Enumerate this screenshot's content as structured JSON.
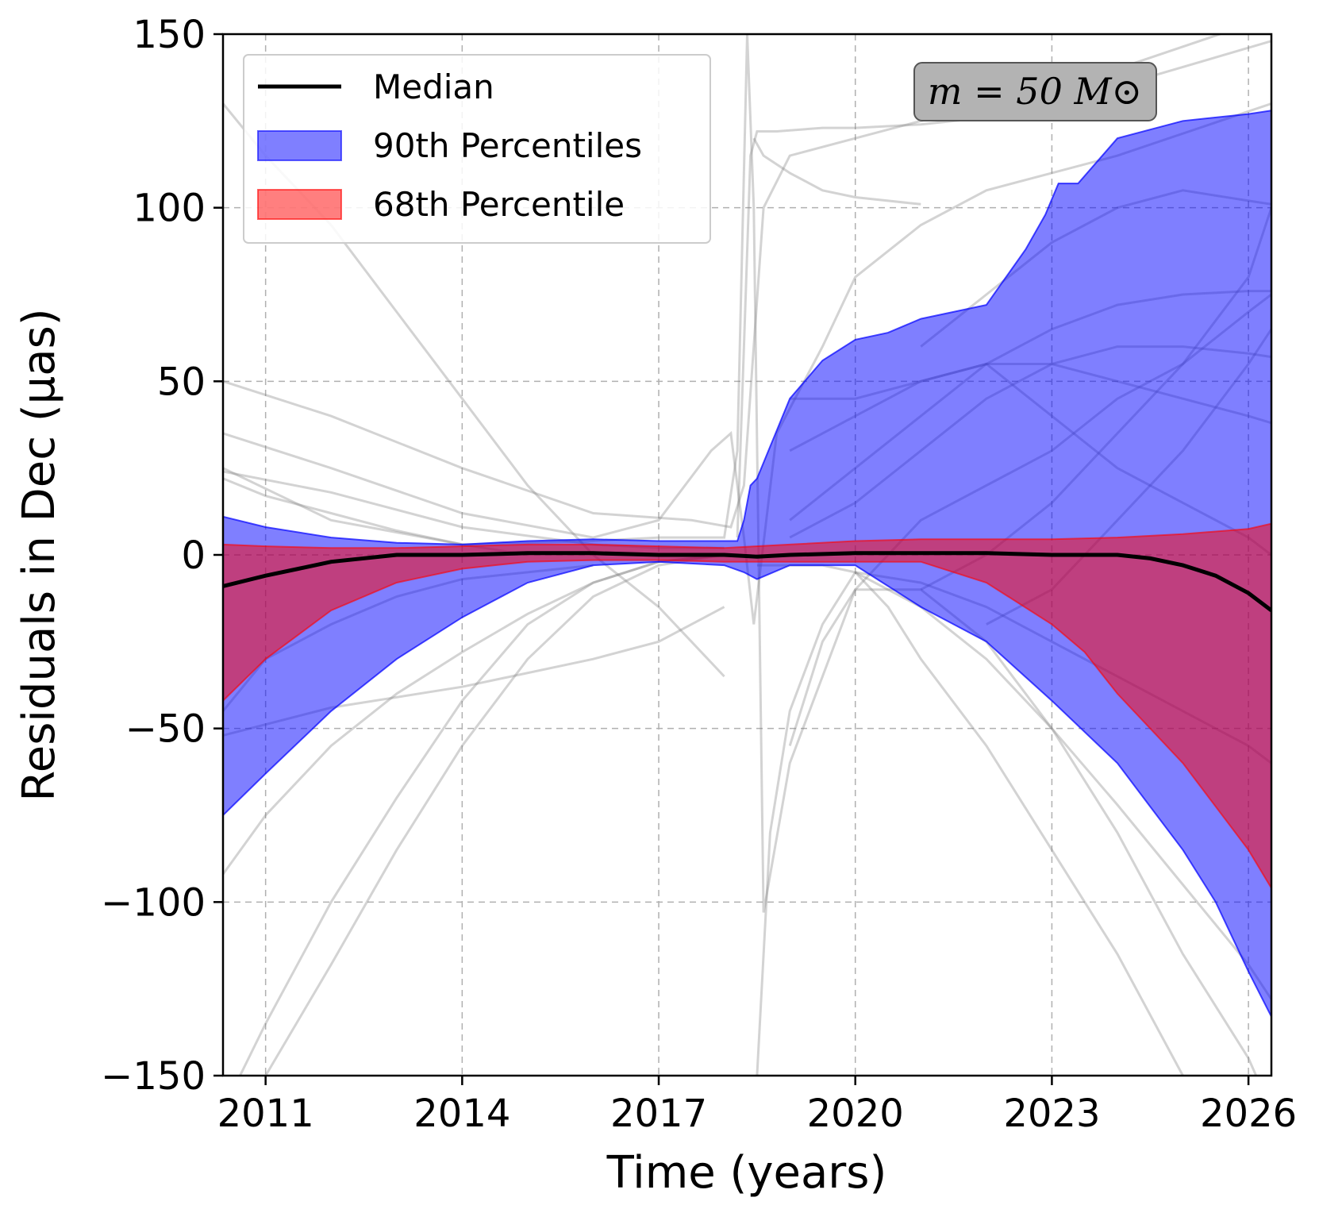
{
  "chart_data": {
    "type": "line",
    "title": "",
    "xlabel": "Time (years)",
    "ylabel": "Residuals in Dec (μas)",
    "xlim": [
      2010.35,
      2026.35
    ],
    "ylim": [
      -150,
      150
    ],
    "xticks": [
      2011,
      2014,
      2017,
      2020,
      2023,
      2026
    ],
    "xtick_labels": [
      "2011",
      "2014",
      "2017",
      "2020",
      "2023",
      "2026"
    ],
    "yticks": [
      -150,
      -100,
      -50,
      0,
      50,
      100,
      150
    ],
    "ytick_labels": [
      "−150",
      "−100",
      "−50",
      "0",
      "50",
      "100",
      "150"
    ],
    "grid": true,
    "legend": {
      "position": "top-left",
      "entries": [
        {
          "label": "Median",
          "kind": "line",
          "color": "#000000"
        },
        {
          "label": "90th Percentiles",
          "kind": "patch",
          "color": "#0000ff"
        },
        {
          "label": "68th Percentile",
          "kind": "patch",
          "color": "#ff0000"
        }
      ]
    },
    "annotation": {
      "text": "m = 50 M⊙",
      "position": "top-right"
    },
    "median": {
      "name": "Median",
      "color": "#000000",
      "x": [
        2010.35,
        2011,
        2011.5,
        2012,
        2013,
        2014,
        2015,
        2016,
        2017,
        2018,
        2018.5,
        2019,
        2020,
        2021,
        2022,
        2023,
        2024,
        2024.5,
        2025,
        2025.5,
        2026,
        2026.35
      ],
      "y": [
        -9,
        -6,
        -4,
        -2,
        0,
        0,
        0.5,
        0.5,
        0,
        0,
        -0.5,
        0,
        0.5,
        0.5,
        0.5,
        0,
        0,
        -1,
        -3,
        -6,
        -11,
        -16
      ]
    },
    "band_90": {
      "name": "90th Percentiles",
      "color": "#0000ff",
      "opacity": 0.5,
      "upper": {
        "x": [
          2010.35,
          2011,
          2012,
          2013,
          2014,
          2015,
          2016,
          2017,
          2018.2,
          2018.3,
          2018.4,
          2018.5,
          2019,
          2019.5,
          2020,
          2020.5,
          2021,
          2022,
          2022.3,
          2022.6,
          2022.9,
          2023.1,
          2023.4,
          2024,
          2025,
          2026,
          2026.35
        ],
        "y": [
          11,
          8,
          5,
          3.5,
          3,
          4,
          4.5,
          4,
          4,
          10,
          20,
          22,
          45,
          56,
          62,
          64,
          68,
          72,
          80,
          88,
          98,
          107,
          107,
          120,
          125,
          127,
          128
        ]
      },
      "lower": {
        "x": [
          2010.35,
          2011,
          2012,
          2013,
          2014,
          2015,
          2016,
          2017,
          2018,
          2018.3,
          2018.5,
          2019,
          2020,
          2021,
          2022,
          2023,
          2024,
          2025,
          2025.5,
          2026,
          2026.35
        ],
        "y": [
          -75,
          -63,
          -45,
          -30,
          -18,
          -8,
          -3,
          -2,
          -3,
          -5,
          -7,
          -3,
          -3,
          -15,
          -25,
          -42,
          -60,
          -85,
          -100,
          -120,
          -133
        ]
      }
    },
    "band_68": {
      "name": "68th Percentile",
      "color": "#ff0000",
      "opacity": 0.5,
      "upper": {
        "x": [
          2010.35,
          2011,
          2012,
          2013,
          2014,
          2015,
          2016,
          2017,
          2018,
          2019,
          2020,
          2021,
          2022,
          2023,
          2024,
          2025,
          2026,
          2026.35
        ],
        "y": [
          3,
          2.5,
          2,
          2,
          2.5,
          3,
          3,
          2.5,
          2,
          3,
          4,
          4.5,
          4.5,
          4.5,
          5,
          6,
          7.5,
          9
        ]
      },
      "lower": {
        "x": [
          2010.35,
          2011,
          2012,
          2013,
          2014,
          2015,
          2016,
          2017,
          2018,
          2019,
          2020,
          2021,
          2022,
          2023,
          2023.5,
          2024,
          2025,
          2026,
          2026.35
        ],
        "y": [
          -42,
          -30,
          -16,
          -8,
          -4,
          -2,
          -1.5,
          -1.5,
          -2,
          -2,
          -2,
          -2,
          -8,
          -20,
          -28,
          -40,
          -60,
          -85,
          -96
        ]
      }
    },
    "sample_curves": [
      {
        "x": [
          2010.35,
          2012,
          2014,
          2016,
          2017.5,
          2018.1,
          2018.3,
          2018.6,
          2019,
          2020,
          2021,
          2022,
          2024,
          2026.35
        ],
        "y": [
          50,
          40,
          25,
          12,
          10,
          8,
          20,
          100,
          115,
          120,
          125,
          130,
          140,
          155
        ]
      },
      {
        "x": [
          2010.35,
          2011,
          2012,
          2013,
          2014,
          2015,
          2016,
          2017,
          2017.5,
          2018
        ],
        "y": [
          130,
          115,
          95,
          70,
          45,
          20,
          0,
          -15,
          -25,
          -35
        ]
      },
      {
        "x": [
          2010.35,
          2012,
          2014,
          2016,
          2017,
          2017.8,
          2018.1,
          2018.3,
          2018.45,
          2018.8,
          2019.5,
          2020,
          2021,
          2022,
          2023,
          2024,
          2026.35
        ],
        "y": [
          35,
          25,
          12,
          5,
          10,
          30,
          35,
          5,
          -20,
          35,
          60,
          80,
          95,
          105,
          110,
          115,
          130
        ]
      },
      {
        "x": [
          2010.35,
          2012,
          2014,
          2016,
          2017,
          2018,
          2018.2,
          2018.35,
          2018.45,
          2018.6,
          2019,
          2020,
          2021,
          2023,
          2024,
          2025,
          2026,
          2026.35
        ],
        "y": [
          25,
          10,
          3,
          4,
          5,
          5,
          30,
          150,
          100,
          -103,
          -60,
          -10,
          10,
          30,
          45,
          55,
          70,
          75
        ]
      },
      {
        "x": [
          2018.2,
          2018.3,
          2018.4,
          2018.5,
          2018.8,
          2019.5,
          2020,
          2021,
          2022,
          2023,
          2024,
          2026.35
        ],
        "y": [
          5,
          60,
          115,
          122,
          122,
          123,
          123,
          124,
          126,
          128,
          135,
          148
        ]
      },
      {
        "x": [
          2018.45,
          2018.6,
          2019,
          2019.5,
          2020,
          2021
        ],
        "y": [
          120,
          115,
          110,
          105,
          103,
          101
        ]
      },
      {
        "x": [
          2010.35,
          2011,
          2012,
          2013,
          2014,
          2015,
          2016,
          2017,
          2018
        ],
        "y": [
          -160,
          -135,
          -100,
          -70,
          -42,
          -20,
          -8,
          -2,
          0
        ]
      },
      {
        "x": [
          2010.35,
          2011,
          2012,
          2013,
          2014,
          2015,
          2016,
          2017,
          2018
        ],
        "y": [
          -92,
          -75,
          -55,
          -40,
          -28,
          -17,
          -8,
          -2,
          0
        ]
      },
      {
        "x": [
          2010.35,
          2012,
          2014,
          2016,
          2017,
          2018
        ],
        "y": [
          -52,
          -44,
          -38,
          -30,
          -25,
          -15
        ]
      },
      {
        "x": [
          2010.35,
          2011,
          2012,
          2013,
          2014,
          2015,
          2016,
          2017,
          2018
        ],
        "y": [
          -170,
          -150,
          -118,
          -85,
          -55,
          -30,
          -12,
          -3,
          0
        ]
      },
      {
        "x": [
          2018.5,
          2018.7,
          2019,
          2019.5,
          2020
        ],
        "y": [
          -150,
          -80,
          -45,
          -20,
          -5
        ]
      },
      {
        "x": [
          2018.5,
          2019.5,
          2020,
          2020.5,
          2021,
          2022,
          2023,
          2024,
          2025,
          2026,
          2026.35
        ],
        "y": [
          -3,
          -3,
          -5,
          -15,
          -30,
          -55,
          -85,
          -115,
          -150,
          -185,
          -200
        ]
      },
      {
        "x": [
          2019,
          2019.5,
          2020,
          2021,
          2022,
          2023,
          2024,
          2025,
          2026,
          2026.35
        ],
        "y": [
          -55,
          -25,
          -10,
          -10,
          -25,
          -50,
          -80,
          -115,
          -145,
          -160
        ]
      },
      {
        "x": [
          2020,
          2021,
          2022,
          2023,
          2024,
          2025,
          2026,
          2026.35
        ],
        "y": [
          -5,
          -15,
          -30,
          -50,
          -72,
          -95,
          -118,
          -128
        ]
      },
      {
        "x": [
          2020,
          2021,
          2022,
          2023,
          2024,
          2025,
          2026,
          2026.35
        ],
        "y": [
          -5,
          -8,
          -15,
          -25,
          -35,
          -45,
          -55,
          -60
        ]
      },
      {
        "x": [
          2019,
          2020,
          2021,
          2022,
          2023,
          2024,
          2025,
          2026,
          2026.35
        ],
        "y": [
          10,
          25,
          40,
          55,
          65,
          72,
          75,
          76,
          76
        ]
      },
      {
        "x": [
          2019,
          2020,
          2021,
          2022,
          2023,
          2024,
          2025,
          2026,
          2026.35
        ],
        "y": [
          5,
          15,
          30,
          45,
          55,
          60,
          60,
          58,
          57
        ]
      },
      {
        "x": [
          2019,
          2020,
          2021,
          2022,
          2023,
          2024,
          2025,
          2026,
          2026.35
        ],
        "y": [
          30,
          40,
          50,
          55,
          55,
          50,
          45,
          40,
          38
        ]
      },
      {
        "x": [
          2019,
          2020,
          2021,
          2022,
          2023,
          2024,
          2025,
          2026,
          2026.35
        ],
        "y": [
          45,
          45,
          50,
          55,
          40,
          25,
          15,
          5,
          0
        ]
      },
      {
        "x": [
          2021,
          2022,
          2023,
          2024,
          2025,
          2026,
          2026.35
        ],
        "y": [
          60,
          75,
          90,
          100,
          105,
          102,
          101
        ]
      },
      {
        "x": [
          2021,
          2022,
          2023,
          2024,
          2025,
          2026,
          2026.35
        ],
        "y": [
          -10,
          0,
          15,
          35,
          55,
          80,
          100
        ]
      },
      {
        "x": [
          2022,
          2023,
          2024,
          2025,
          2026,
          2026.35
        ],
        "y": [
          -20,
          -10,
          10,
          30,
          55,
          65
        ]
      },
      {
        "x": [
          2010.35,
          2012,
          2014,
          2016,
          2017,
          2018
        ],
        "y": [
          24,
          18,
          8,
          3,
          2,
          2
        ]
      },
      {
        "x": [
          2010.35,
          2011,
          2012,
          2013,
          2014,
          2015
        ],
        "y": [
          22,
          17,
          12,
          7,
          3,
          0
        ]
      },
      {
        "x": [
          2010.35,
          2011,
          2012,
          2013,
          2014,
          2016
        ],
        "y": [
          -45,
          -30,
          -20,
          -12,
          -7,
          -3
        ]
      }
    ]
  }
}
